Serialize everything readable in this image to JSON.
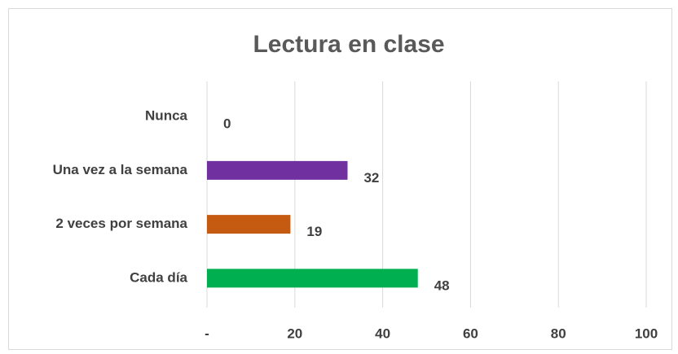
{
  "chart_data": {
    "type": "barh",
    "title": "Lectura en clase",
    "categories": [
      "Nunca",
      "Una vez a la semana",
      "2 veces por semana",
      "Cada día"
    ],
    "values": [
      0,
      32,
      19,
      48
    ],
    "colors": [
      "#7f7f7f",
      "#7030a0",
      "#c55a11",
      "#00b050"
    ],
    "xlim": [
      0,
      100
    ],
    "xticks": [
      {
        "value": 0,
        "label": "-"
      },
      20,
      40,
      60,
      80,
      100
    ],
    "grid": true
  }
}
